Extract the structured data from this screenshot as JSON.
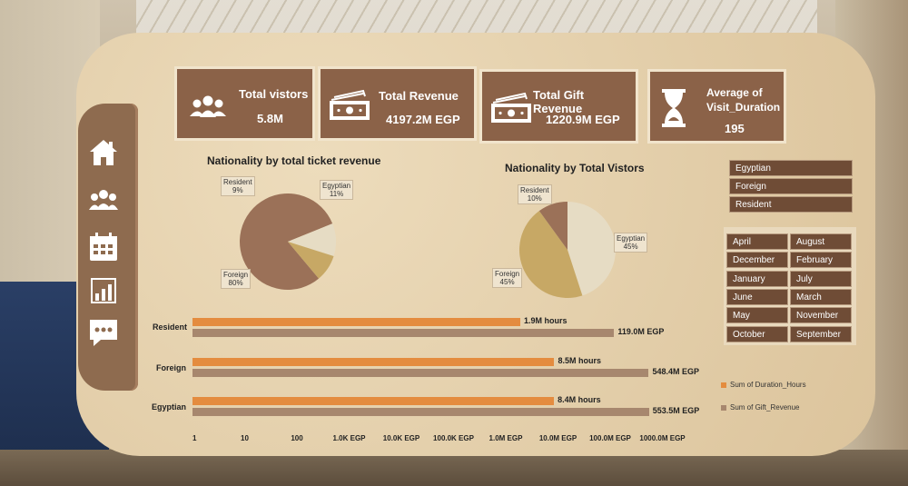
{
  "colors": {
    "kpi_bg": "#8b6248",
    "pie_foreign": "#9b7158",
    "pie_egyptian": "#e6dcc4",
    "pie_resident": "#c7a865",
    "bar_duration": "#e48c3f",
    "bar_gift": "#a7876e",
    "slicer_bg": "#6f4c36"
  },
  "sidebar": {
    "icons": [
      "home-icon",
      "users-icon",
      "calendar-icon",
      "bar-chart-icon",
      "chat-icon"
    ]
  },
  "kpis": [
    {
      "title": "Total vistors",
      "value": "5.8M",
      "icon": "users-icon"
    },
    {
      "title": "Total Revenue",
      "value": "4197.2M  EGP",
      "icon": "money-icon"
    },
    {
      "title": "Total Gift Revenue",
      "value": "1220.9M  EGP",
      "icon": "money-icon"
    },
    {
      "title_line1": "Average of",
      "title_line2": "Visit_Duration",
      "value": "195",
      "icon": "hourglass-icon"
    }
  ],
  "nationality_filter": [
    "Egyptian",
    "Foreign",
    "Resident"
  ],
  "month_filter": [
    [
      "April",
      "August"
    ],
    [
      "December",
      "February"
    ],
    [
      "January",
      "July"
    ],
    [
      "June",
      "March"
    ],
    [
      "May",
      "November"
    ],
    [
      "October",
      "September"
    ]
  ],
  "chart_data": [
    {
      "type": "pie",
      "title": "Nationality by total ticket revenue",
      "slices": [
        {
          "name": "Foreign",
          "value": 80,
          "label": "Foreign\n80%"
        },
        {
          "name": "Egyptian",
          "value": 11,
          "label": "Egyptian\n11%"
        },
        {
          "name": "Resident",
          "value": 9,
          "label": "Resident\n9%"
        }
      ]
    },
    {
      "type": "pie",
      "title": "Nationality by Total Vistors",
      "slices": [
        {
          "name": "Egyptian",
          "value": 45,
          "label": "Egyptian\n45%"
        },
        {
          "name": "Foreign",
          "value": 45,
          "label": "Foreign\n45%"
        },
        {
          "name": "Resident",
          "value": 10,
          "label": "Resident\n10%"
        }
      ]
    },
    {
      "type": "bar",
      "orientation": "horizontal",
      "log_scale": true,
      "categories": [
        "Resident",
        "Foreign",
        "Egyptian"
      ],
      "series": [
        {
          "name": "Sum of Duration_Hours",
          "values": [
            1900000,
            8500000,
            8400000
          ],
          "labels": [
            "1.9M hours",
            "8.5M hours",
            "8.4M hours"
          ]
        },
        {
          "name": "Sum of Gift_Revenue",
          "values": [
            119000000,
            548400000,
            553500000
          ],
          "labels": [
            "119.0M EGP",
            "548.4M EGP",
            "553.5M EGP"
          ]
        }
      ],
      "x_ticks": [
        "1",
        "10",
        "100",
        "1.0K EGP",
        "10.0K EGP",
        "100.0K EGP",
        "1.0M EGP",
        "10.0M EGP",
        "100.0M EGP",
        "1000.0M EGP"
      ],
      "xlim": [
        1,
        1000000000
      ]
    }
  ]
}
